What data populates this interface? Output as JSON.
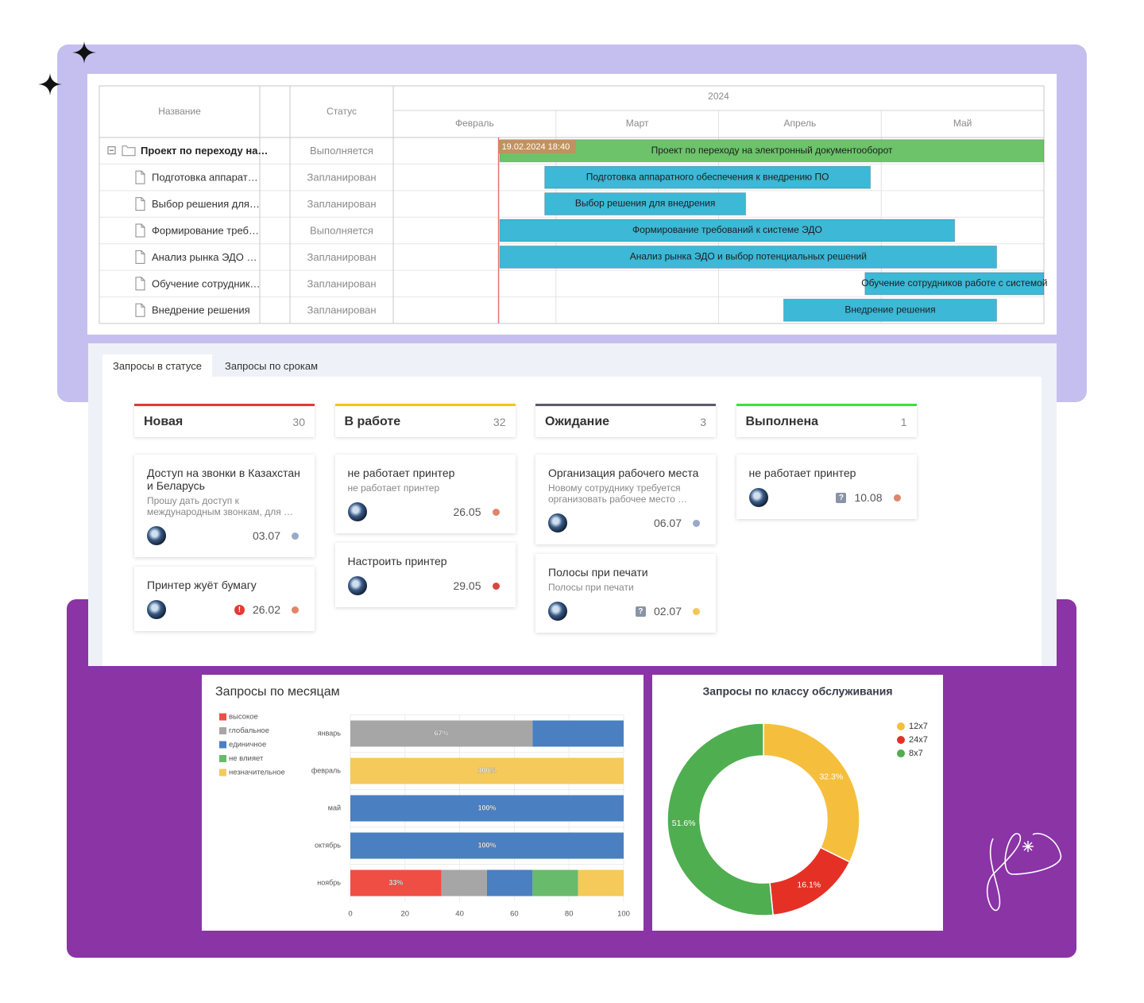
{
  "gantt": {
    "columns": [
      "Название",
      "Статус"
    ],
    "year": "2024",
    "months": [
      "Февраль",
      "Март",
      "Апрель",
      "Май"
    ],
    "xlim": [
      "2024-02-01",
      "2024-06-01"
    ],
    "today": "19.02.2024 18:40",
    "rows": [
      {
        "name": "Проект по переходу на…",
        "status": "Выполняется",
        "bar": "Проект по переходу на электронный документооборот",
        "start": "2024-02-20",
        "end": "2024-05-31",
        "color": "#6cc36a"
      },
      {
        "name": "Подготовка аппарат…",
        "status": "Запланирован",
        "bar": "Подготовка аппаратного обеспечения к внедрению ПО",
        "start": "2024-02-28",
        "end": "2024-04-28",
        "color": "#3db8d6"
      },
      {
        "name": "Выбор решения для…",
        "status": "Запланирован",
        "bar": "Выбор решения для внедрения",
        "start": "2024-02-28",
        "end": "2024-04-05",
        "color": "#3db8d6"
      },
      {
        "name": "Формирование треб…",
        "status": "Выполняется",
        "bar": "Формирование требований к системе ЭДО",
        "start": "2024-02-20",
        "end": "2024-05-14",
        "color": "#3db8d6"
      },
      {
        "name": "Анализ рынка ЭДО …",
        "status": "Запланирован",
        "bar": "Анализ рынка ЭДО и выбор потенциальных решений",
        "start": "2024-02-20",
        "end": "2024-05-22",
        "color": "#3db8d6"
      },
      {
        "name": "Обучение сотрудник…",
        "status": "Запланирован",
        "bar": "Обучение сотрудников работе с системой",
        "start": "2024-04-28",
        "end": "2024-05-31",
        "color": "#3db8d6"
      },
      {
        "name": "Внедрение решения",
        "status": "Запланирован",
        "bar": "Внедрение решения",
        "start": "2024-04-13",
        "end": "2024-05-22",
        "color": "#3db8d6"
      }
    ]
  },
  "kanban": {
    "tabs": [
      "Запросы в статусе",
      "Запросы по срокам"
    ],
    "columns": [
      {
        "title": "Новая",
        "count": 30,
        "color": "#e53935",
        "cards": [
          {
            "title": "Доступ на звонки в Казахстан и Беларусь",
            "text": "Прошу дать доступ к международным звонкам, для …",
            "date": "03.07",
            "color": "#9aa9c9"
          },
          {
            "title": "Принтер жуёт бумагу",
            "icon": "!",
            "date": "26.02",
            "color": "#e0856a"
          }
        ]
      },
      {
        "title": "В работе",
        "count": 32,
        "color": "#f5c518",
        "cards": [
          {
            "title": "не работает принтер",
            "text": "не работает принтер",
            "date": "26.05",
            "color": "#e0856a"
          },
          {
            "title": "Настроить принтер",
            "date": "29.05",
            "color": "#d9463e"
          }
        ]
      },
      {
        "title": "Ожидание",
        "count": 3,
        "color": "#5b5b6b",
        "cards": [
          {
            "title": "Организация рабочего места",
            "text": "Новому сотруднику требуется организовать рабочее место …",
            "date": "06.07",
            "color": "#9aa9c9"
          },
          {
            "title": "Полосы при печати",
            "text": "Полосы при печати",
            "icon": "?",
            "date": "02.07",
            "color": "#f5c55a"
          }
        ]
      },
      {
        "title": "Выполнена",
        "count": 1,
        "color": "#3ee03e",
        "cards": [
          {
            "title": "не работает принтер",
            "icon": "?",
            "date": "10.08",
            "color": "#e0856a"
          }
        ]
      }
    ]
  },
  "chart_data": [
    {
      "type": "bar",
      "orientation": "horizontal",
      "stacked": true,
      "title": "Запросы по месяцам",
      "categories": [
        "январь",
        "февраль",
        "май",
        "октябрь",
        "ноябрь"
      ],
      "series": [
        {
          "name": "высокое",
          "color": "#ef4e44",
          "values": [
            0,
            0,
            0,
            0,
            33.33
          ],
          "value_labels": [
            null,
            null,
            null,
            null,
            "33%"
          ]
        },
        {
          "name": "глобальное",
          "color": "#a6a6a6",
          "values": [
            66.67,
            0,
            0,
            0,
            16.67
          ],
          "value_labels": [
            "67%",
            null,
            null,
            null,
            null
          ]
        },
        {
          "name": "единичное",
          "color": "#4a7fc1",
          "values": [
            33.33,
            0,
            100,
            100,
            16.67
          ],
          "value_labels": [
            null,
            null,
            "100%",
            "100%",
            null
          ]
        },
        {
          "name": "не влияет",
          "color": "#67bb6a",
          "values": [
            0,
            0,
            0,
            0,
            16.67
          ],
          "value_labels": [
            null,
            null,
            null,
            null,
            null
          ]
        },
        {
          "name": "незначительное",
          "color": "#f5c95a",
          "values": [
            0,
            100,
            0,
            0,
            16.67
          ],
          "value_labels": [
            null,
            "100%",
            null,
            null,
            null
          ]
        }
      ],
      "xlim": [
        0,
        100
      ],
      "xticks": [
        0,
        20,
        40,
        60,
        80,
        100
      ],
      "grid": true
    },
    {
      "type": "pie",
      "donut": true,
      "title": "Запросы по классу обслуживания",
      "categories": [
        "12x7",
        "24x7",
        "8x7"
      ],
      "values": [
        32.3,
        16.1,
        51.6
      ],
      "value_labels": [
        "32.3%",
        "16.1%",
        "51.6%"
      ],
      "colors": [
        "#f5bf3d",
        "#e53026",
        "#4fae50"
      ]
    }
  ]
}
